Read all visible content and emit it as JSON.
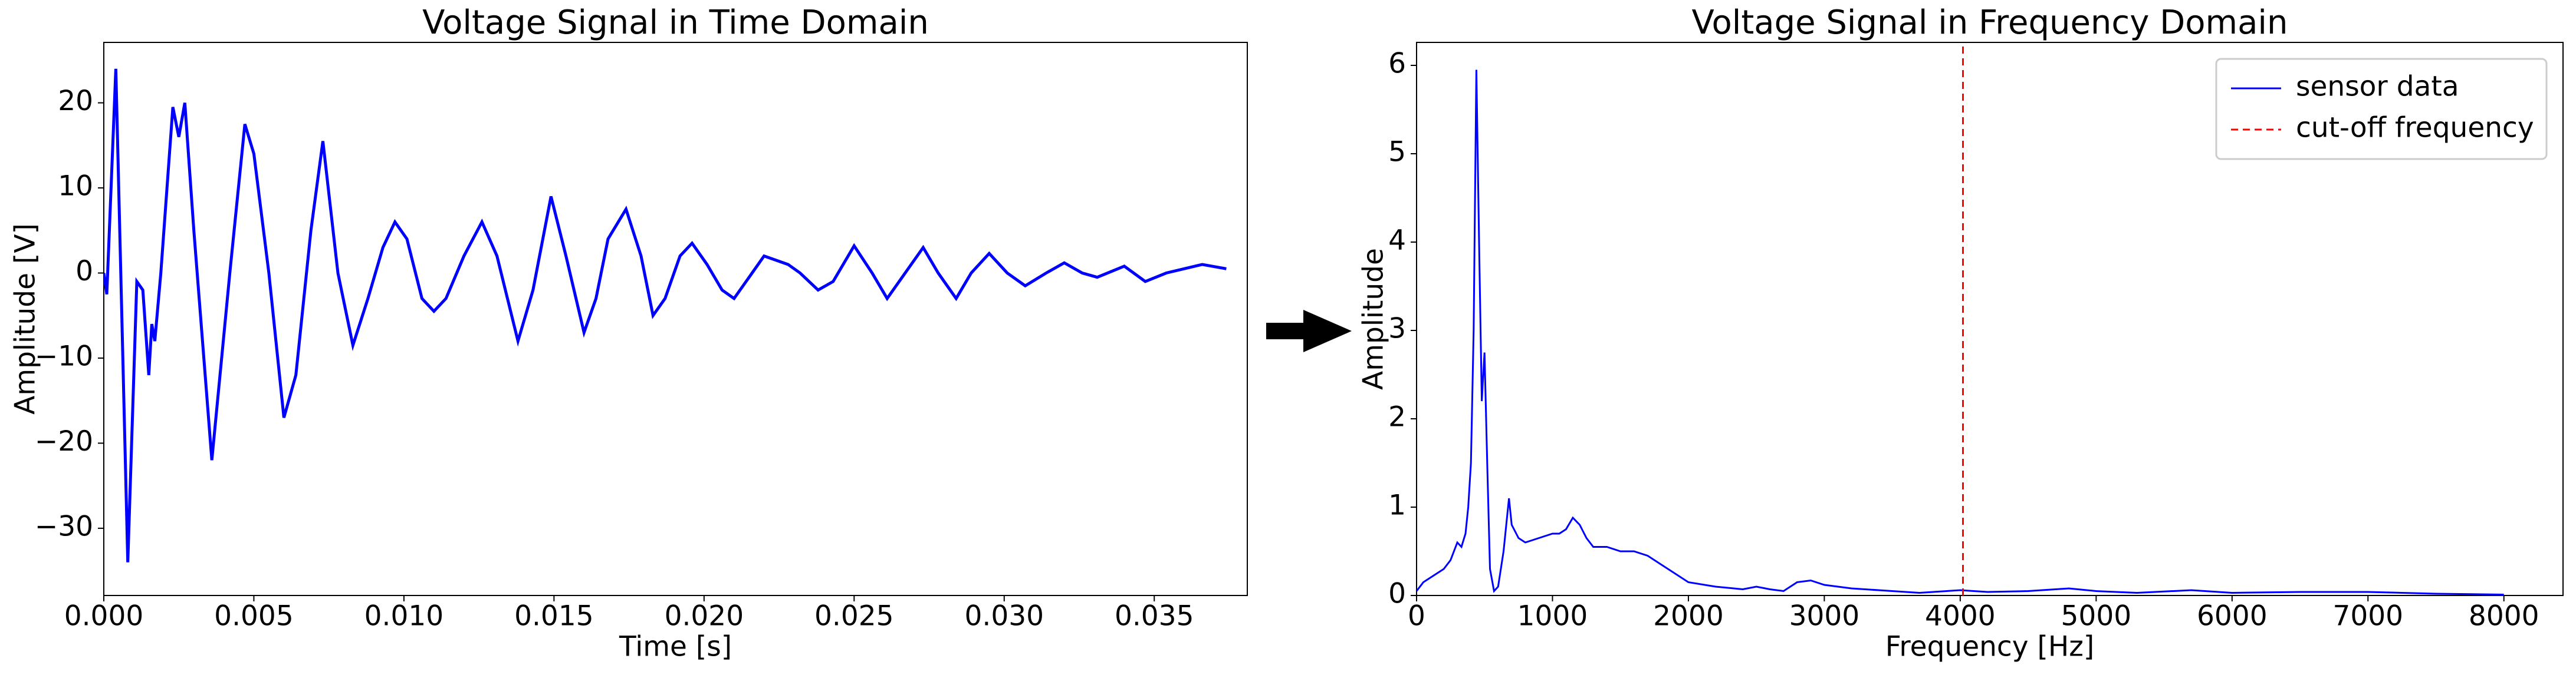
{
  "chart_data": [
    {
      "type": "line",
      "title": "Voltage Signal in Time Domain",
      "xlabel": "Time [s]",
      "ylabel": "Amplitude [V]",
      "xlim": [
        0,
        0.0381
      ],
      "ylim": [
        -37.9,
        27.1
      ],
      "xticks": [
        {
          "value": 0,
          "label": "0.000"
        },
        {
          "value": 0.005,
          "label": "0.005"
        },
        {
          "value": 0.01,
          "label": "0.010"
        },
        {
          "value": 0.015,
          "label": "0.015"
        },
        {
          "value": 0.02,
          "label": "0.020"
        },
        {
          "value": 0.025,
          "label": "0.025"
        },
        {
          "value": 0.03,
          "label": "0.030"
        },
        {
          "value": 0.035,
          "label": "0.035"
        }
      ],
      "yticks": [
        {
          "value": -30,
          "label": "−30"
        },
        {
          "value": -20,
          "label": "−20"
        },
        {
          "value": -10,
          "label": "−10"
        },
        0,
        10,
        20
      ],
      "series": [
        {
          "color": "blue",
          "x": [
            0,
            0.0001,
            0.0004,
            0.0008,
            0.0011,
            0.0013,
            0.0015,
            0.0016,
            0.0017,
            0.0019,
            0.0023,
            0.0025,
            0.0027,
            0.003,
            0.0036,
            0.0042,
            0.0047,
            0.005,
            0.0055,
            0.006,
            0.0064,
            0.0069,
            0.0073,
            0.0078,
            0.0083,
            0.0088,
            0.0093,
            0.0097,
            0.0101,
            0.0106,
            0.011,
            0.0114,
            0.012,
            0.0126,
            0.0131,
            0.0138,
            0.0143,
            0.0149,
            0.0154,
            0.016,
            0.0164,
            0.0168,
            0.0174,
            0.0179,
            0.0183,
            0.0187,
            0.0192,
            0.0196,
            0.0201,
            0.0206,
            0.021,
            0.0216,
            0.022,
            0.0228,
            0.0232,
            0.0238,
            0.0243,
            0.025,
            0.0256,
            0.0261,
            0.0268,
            0.0273,
            0.0278,
            0.0284,
            0.0289,
            0.0295,
            0.0301,
            0.0307,
            0.0314,
            0.032,
            0.0326,
            0.0331,
            0.034,
            0.0347,
            0.0354,
            0.0366,
            0.0374
          ],
          "values": [
            0,
            -2.5,
            24,
            -34,
            -1,
            -2,
            -12,
            -6,
            -8,
            0,
            19.5,
            16,
            20,
            5,
            -22,
            0,
            17.5,
            14,
            0,
            -17,
            -12,
            5,
            15.5,
            0,
            -8.5,
            -3,
            3,
            6,
            4,
            -3,
            -4.5,
            -3,
            2,
            6,
            2,
            -8,
            -2,
            9,
            2,
            -7,
            -3,
            4,
            7.5,
            2,
            -5,
            -3,
            2,
            3.5,
            1,
            -2,
            -3,
            0,
            2,
            1,
            0,
            -2,
            -1,
            3.2,
            0,
            -3,
            0.5,
            3,
            0,
            -3,
            0,
            2.3,
            0,
            -1.5,
            0,
            1.2,
            0,
            -0.5,
            0.8,
            -1,
            0,
            1,
            0.5
          ]
        }
      ]
    },
    {
      "type": "line",
      "title": "Voltage Signal in Frequency Domain",
      "xlabel": "Frequency [Hz]",
      "ylabel": "Amplitude",
      "xlim": [
        0,
        8435
      ],
      "ylim": [
        0,
        6.26
      ],
      "xticks": [
        0,
        1000,
        2000,
        3000,
        4000,
        5000,
        6000,
        7000,
        8000
      ],
      "yticks": [
        0,
        1,
        2,
        3,
        4,
        5,
        6
      ],
      "legend": "upper right",
      "series": [
        {
          "name": "sensor data",
          "color": "blue",
          "x": [
            0,
            50,
            100,
            200,
            250,
            300,
            330,
            360,
            380,
            400,
            420,
            440,
            460,
            480,
            500,
            520,
            540,
            570,
            600,
            640,
            680,
            700,
            750,
            800,
            900,
            1000,
            1050,
            1100,
            1150,
            1200,
            1250,
            1300,
            1400,
            1500,
            1600,
            1700,
            1800,
            1900,
            2000,
            2200,
            2400,
            2500,
            2600,
            2700,
            2800,
            2900,
            3000,
            3200,
            3500,
            3700,
            4000,
            4200,
            4500,
            4800,
            5000,
            5300,
            5700,
            6000,
            6500,
            7000,
            7500,
            8000
          ],
          "values": [
            0.05,
            0.15,
            0.2,
            0.3,
            0.4,
            0.6,
            0.55,
            0.7,
            1.0,
            1.5,
            3,
            5.95,
            4,
            2.2,
            2.75,
            1.5,
            0.3,
            0.05,
            0.1,
            0.5,
            1.1,
            0.8,
            0.65,
            0.6,
            0.65,
            0.7,
            0.7,
            0.75,
            0.88,
            0.8,
            0.65,
            0.55,
            0.55,
            0.5,
            0.5,
            0.45,
            0.35,
            0.25,
            0.15,
            0.1,
            0.07,
            0.1,
            0.07,
            0.05,
            0.15,
            0.17,
            0.12,
            0.08,
            0.05,
            0.03,
            0.06,
            0.04,
            0.05,
            0.08,
            0.05,
            0.03,
            0.06,
            0.03,
            0.04,
            0.04,
            0.02,
            0.01
          ]
        },
        {
          "name": "cut-off frequency",
          "color": "red",
          "dashed": true,
          "x": [
            4020,
            4020
          ],
          "values": [
            0,
            6.26
          ]
        }
      ]
    }
  ]
}
